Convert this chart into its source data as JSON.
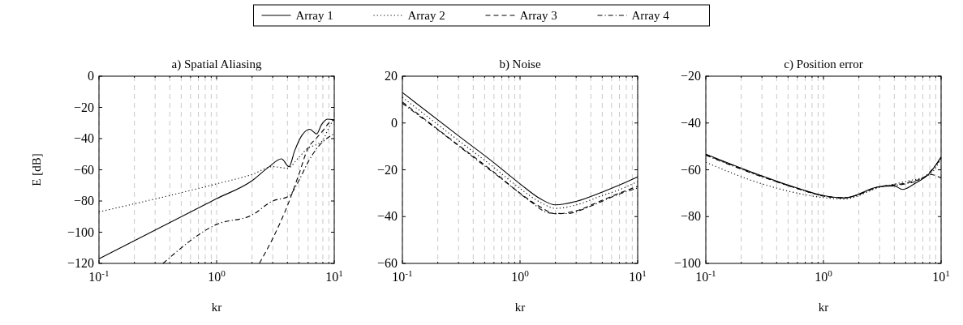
{
  "chart_data": [
    {
      "type": "line",
      "title": "a) Spatial Aliasing",
      "xlabel": "kr",
      "ylabel": "E [dB]",
      "log": "x",
      "grid": "x",
      "legend": "top",
      "xlim": [
        0.1,
        10
      ],
      "ylim": [
        -120,
        0
      ],
      "yticks": [
        -120,
        -100,
        -80,
        -60,
        -40,
        -20,
        0
      ],
      "xticks": [
        {
          "value": 0.1,
          "label": "10$^{-1}$"
        },
        {
          "value": 0.2,
          "label": null
        },
        {
          "value": 0.3,
          "label": null
        },
        {
          "value": 0.4,
          "label": null
        },
        {
          "value": 0.5,
          "label": null
        },
        {
          "value": 0.6,
          "label": null
        },
        {
          "value": 0.7,
          "label": null
        },
        {
          "value": 0.8,
          "label": null
        },
        {
          "value": 0.9,
          "label": null
        },
        {
          "value": 1,
          "label": "10$^{0}$"
        },
        {
          "value": 2,
          "label": null
        },
        {
          "value": 3,
          "label": null
        },
        {
          "value": 4,
          "label": null
        },
        {
          "value": 5,
          "label": null
        },
        {
          "value": 6,
          "label": null
        },
        {
          "value": 7,
          "label": null
        },
        {
          "value": 8,
          "label": null
        },
        {
          "value": 9,
          "label": null
        },
        {
          "value": 10,
          "label": "10$^{1}$"
        }
      ],
      "series": [
        {
          "name": "Array 1",
          "color": "#000000",
          "line_style": "solid",
          "x": [
            0.1,
            1,
            2,
            2.8,
            3.56,
            4.13,
            4.6,
            5.3,
            6.2,
            7.08,
            7.8,
            8.75,
            10
          ],
          "values": [
            -117,
            -78.5,
            -67,
            -58,
            -53,
            -58,
            -48,
            -38,
            -34,
            -37,
            -31,
            -27.5,
            -28
          ]
        },
        {
          "name": "Array 2",
          "color": "#000000",
          "line_style": "dotted",
          "x": [
            0.1,
            1,
            2,
            3,
            4,
            5,
            6,
            7,
            8,
            9,
            10
          ],
          "values": [
            -87,
            -69,
            -63,
            -58,
            -59,
            -52,
            -46,
            -44,
            -41,
            -33,
            -27
          ]
        },
        {
          "name": "Array 3",
          "color": "#000000",
          "line_style": "dashed",
          "x": [
            2.31,
            3,
            4,
            5,
            6,
            7,
            8,
            9,
            10
          ],
          "values": [
            -120,
            -104,
            -83,
            -63,
            -46,
            -40,
            -35,
            -30,
            -28
          ]
        },
        {
          "name": "Array 4",
          "color": "#000000",
          "line_style": "dashdot",
          "x": [
            0.35,
            1,
            2,
            3,
            4.1,
            5,
            6,
            7,
            8,
            9,
            10
          ],
          "values": [
            -120,
            -95,
            -89,
            -80,
            -77,
            -67,
            -55,
            -47,
            -42,
            -39,
            -37
          ]
        }
      ]
    },
    {
      "type": "line",
      "title": "b) Noise",
      "xlabel": "kr",
      "log": "x",
      "grid": "x",
      "xlim": [
        0.1,
        10
      ],
      "ylim": [
        -60,
        20
      ],
      "yticks": [
        -60,
        -40,
        -20,
        0,
        20
      ],
      "xticks": [
        {
          "value": 0.1,
          "label": "10$^{-1}$"
        },
        {
          "value": 0.2,
          "label": null
        },
        {
          "value": 0.3,
          "label": null
        },
        {
          "value": 0.4,
          "label": null
        },
        {
          "value": 0.5,
          "label": null
        },
        {
          "value": 0.6,
          "label": null
        },
        {
          "value": 0.7,
          "label": null
        },
        {
          "value": 0.8,
          "label": null
        },
        {
          "value": 0.9,
          "label": null
        },
        {
          "value": 1,
          "label": "10$^{0}$"
        },
        {
          "value": 2,
          "label": null
        },
        {
          "value": 3,
          "label": null
        },
        {
          "value": 4,
          "label": null
        },
        {
          "value": 5,
          "label": null
        },
        {
          "value": 6,
          "label": null
        },
        {
          "value": 7,
          "label": null
        },
        {
          "value": 8,
          "label": null
        },
        {
          "value": 9,
          "label": null
        },
        {
          "value": 10,
          "label": "10$^{1}$"
        }
      ],
      "series": [
        {
          "color": "#000000",
          "line_style": "solid",
          "x": [
            0.1,
            0.3,
            0.6,
            1,
            1.5,
            2,
            3,
            5,
            7,
            10
          ],
          "values": [
            13,
            -5.5,
            -17,
            -26,
            -32.5,
            -35,
            -33.5,
            -29.5,
            -26.5,
            -23
          ]
        },
        {
          "color": "#000000",
          "line_style": "dotted",
          "x": [
            0.1,
            0.3,
            0.6,
            1,
            1.5,
            2,
            3,
            5,
            7,
            10
          ],
          "values": [
            11,
            -7.5,
            -19,
            -28,
            -34,
            -36.5,
            -35,
            -31,
            -28.5,
            -25
          ]
        },
        {
          "color": "#000000",
          "line_style": "dashed",
          "x": [
            0.1,
            0.3,
            0.6,
            1,
            1.5,
            2,
            3,
            5,
            7,
            10
          ],
          "values": [
            9,
            -9.5,
            -21,
            -30,
            -36,
            -38.8,
            -37.5,
            -33,
            -30,
            -27
          ]
        },
        {
          "color": "#000000",
          "line_style": "dashdot",
          "x": [
            0.1,
            0.2,
            0.4,
            0.8,
            1.2,
            1.8,
            2.5,
            4,
            6,
            8,
            10
          ],
          "values": [
            8.4,
            -2.9,
            -14.6,
            -26.2,
            -33.2,
            -38.5,
            -38.7,
            -35.5,
            -31.7,
            -29.3,
            -27.8
          ]
        }
      ]
    },
    {
      "type": "line",
      "title": "c) Position error",
      "xlabel": "kr",
      "log": "x",
      "grid": "x",
      "xlim": [
        0.1,
        10
      ],
      "ylim": [
        -100,
        -20
      ],
      "yticks": [
        -100,
        -80,
        -60,
        -40,
        -20
      ],
      "xticks": [
        {
          "value": 0.1,
          "label": "10$^{-1}$"
        },
        {
          "value": 0.2,
          "label": null
        },
        {
          "value": 0.3,
          "label": null
        },
        {
          "value": 0.4,
          "label": null
        },
        {
          "value": 0.5,
          "label": null
        },
        {
          "value": 0.6,
          "label": null
        },
        {
          "value": 0.7,
          "label": null
        },
        {
          "value": 0.8,
          "label": null
        },
        {
          "value": 0.9,
          "label": null
        },
        {
          "value": 1,
          "label": "10$^{0}$"
        },
        {
          "value": 2,
          "label": null
        },
        {
          "value": 3,
          "label": null
        },
        {
          "value": 4,
          "label": null
        },
        {
          "value": 5,
          "label": null
        },
        {
          "value": 6,
          "label": null
        },
        {
          "value": 7,
          "label": null
        },
        {
          "value": 8,
          "label": null
        },
        {
          "value": 9,
          "label": null
        },
        {
          "value": 10,
          "label": "10$^{1}$"
        }
      ],
      "series": [
        {
          "color": "#000000",
          "line_style": "solid",
          "x": [
            0.1,
            0.3,
            0.6,
            1,
            1.5,
            3,
            4,
            4.7,
            6,
            8,
            10
          ],
          "values": [
            -53.3,
            -62.6,
            -67.8,
            -71,
            -72,
            -67.2,
            -66.9,
            -68.4,
            -65.8,
            -61.4,
            -54.5
          ]
        },
        {
          "color": "#000000",
          "line_style": "dotted",
          "x": [
            0.1,
            0.3,
            0.6,
            1,
            1.5,
            3,
            5,
            8,
            10
          ],
          "values": [
            -56.8,
            -66,
            -70,
            -71.9,
            -72.5,
            -67.5,
            -65,
            -62,
            -55
          ]
        },
        {
          "color": "#000000",
          "line_style": "dashed",
          "x": [
            0.1,
            0.3,
            0.6,
            1,
            1.5,
            3,
            5,
            7,
            8,
            9,
            10
          ],
          "values": [
            -53.5,
            -62.8,
            -68,
            -71.2,
            -72,
            -67.2,
            -65.7,
            -63.5,
            -62,
            -62.5,
            -63.5
          ]
        },
        {
          "color": "#000000",
          "line_style": "dashdot",
          "x": [
            0.1,
            0.3,
            0.6,
            1,
            1.5,
            3,
            5,
            7,
            8,
            10
          ],
          "values": [
            -53.8,
            -63,
            -68,
            -71.1,
            -72,
            -67.3,
            -66,
            -63.5,
            -61,
            -55
          ]
        }
      ]
    }
  ]
}
